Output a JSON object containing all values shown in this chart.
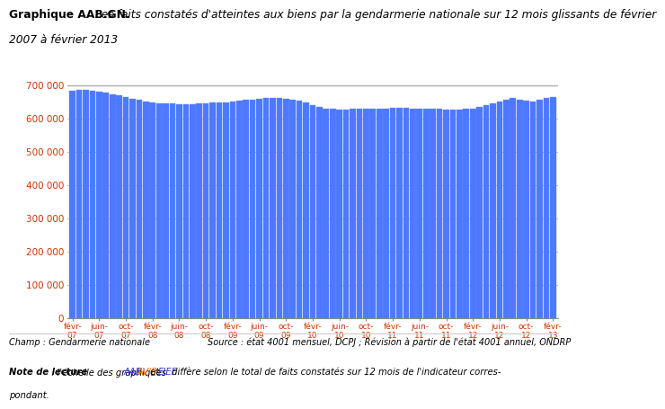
{
  "title_bold": "Graphique AAB.GN.",
  "title_italic": " Les faits constatés d'atteintes aux biens par la gendarmerie nationale sur 12 mois glissants de février 2007 à février 2013",
  "bar_color": "#4d79ff",
  "bar_edge_color": "#6688ff",
  "background_color": "#ffffff",
  "grid_color": "#b8b8b8",
  "ylim": [
    0,
    730000
  ],
  "yticks": [
    0,
    100000,
    200000,
    300000,
    400000,
    500000,
    600000,
    700000
  ],
  "ytick_labels": [
    "0",
    "100 000",
    "200 000",
    "300 000",
    "400 000",
    "500 000",
    "600 000",
    "700 000"
  ],
  "hline_value": 700000,
  "hline_color": "#aaaaaa",
  "values": [
    683000,
    686000,
    685000,
    683000,
    680000,
    677000,
    672000,
    668000,
    663000,
    659000,
    655000,
    651000,
    648000,
    645000,
    645000,
    644000,
    643000,
    643000,
    643000,
    644000,
    645000,
    647000,
    648000,
    649000,
    651000,
    654000,
    655000,
    657000,
    659000,
    660000,
    661000,
    660000,
    659000,
    657000,
    652000,
    648000,
    640000,
    635000,
    630000,
    628000,
    627000,
    627000,
    628000,
    629000,
    630000,
    630000,
    630000,
    630000,
    631000,
    631000,
    631000,
    630000,
    630000,
    630000,
    629000,
    628000,
    627000,
    627000,
    627000,
    628000,
    630000,
    635000,
    640000,
    645000,
    650000,
    655000,
    660000,
    657000,
    653000,
    651000,
    655000,
    660000,
    663000
  ],
  "x_tick_positions": [
    0,
    4,
    8,
    12,
    16,
    20,
    24,
    28,
    32,
    36,
    40,
    44,
    48,
    52,
    56,
    60,
    64,
    68,
    72
  ],
  "x_tick_labels": [
    "févr-\n07",
    "juin-\n07",
    "oct-\n07",
    "févr-\n08",
    "juin-\n08",
    "oct-\n08",
    "févr-\n09",
    "juin-\n09",
    "oct-\n09",
    "févr-\n10",
    "juin-\n10",
    "oct-\n10",
    "févr-\n11",
    "juin-\n11",
    "oct-\n11",
    "févr-\n12",
    "juin-\n12",
    "oct-\n12",
    "févr-\n13"
  ],
  "footer_left": "Champ : Gendarmerie nationale",
  "footer_right": "Source : état 4001 mensuel, DCPJ ; Révision à partir de l'état 4001 annuel, ONDRP",
  "note_color_aab": "#3333cc",
  "note_color_avip": "#ff6600",
  "note_color_eief": "#3333cc",
  "tick_color": "#cc3300",
  "ytick_fontsize": 7.5,
  "xtick_fontsize": 6.5
}
